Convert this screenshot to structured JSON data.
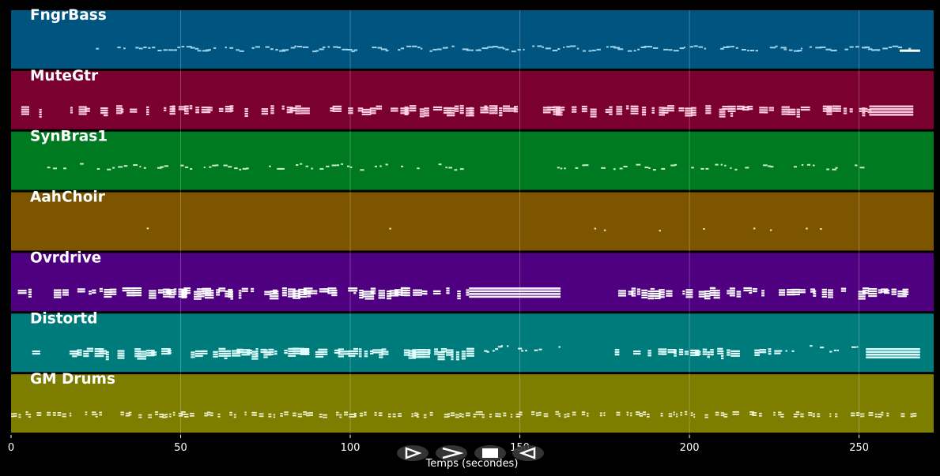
{
  "chart_data": {
    "type": "piano-roll",
    "xlabel": "Temps (secondes)",
    "xlim": [
      0,
      272
    ],
    "xticks": [
      0,
      50,
      100,
      150,
      200,
      250
    ],
    "grid": true,
    "tracks": [
      {
        "name": "FngrBass",
        "color": "#005580",
        "note_color": "#9fd3e8",
        "regions": [
          {
            "start": 25,
            "end": 43,
            "density": 0.55,
            "style": "sparse"
          },
          {
            "start": 42,
            "end": 266,
            "density": 0.85,
            "style": "bass"
          }
        ],
        "end_bar": {
          "start": 262,
          "end": 268
        }
      },
      {
        "name": "MuteGtr",
        "color": "#7a0030",
        "note_color": "#ffd0e0",
        "regions": [
          {
            "start": 3,
            "end": 42,
            "density": 0.35,
            "style": "chord"
          },
          {
            "start": 42,
            "end": 150,
            "density": 0.55,
            "style": "chord"
          },
          {
            "start": 154,
            "end": 253,
            "density": 0.6,
            "style": "chord"
          },
          {
            "start": 253,
            "end": 266,
            "density": 1.0,
            "style": "block"
          }
        ]
      },
      {
        "name": "SynBras1",
        "color": "#007a20",
        "note_color": "#c8f0c8",
        "regions": [
          {
            "start": 9,
            "end": 72,
            "density": 0.6,
            "style": "melody"
          },
          {
            "start": 76,
            "end": 135,
            "density": 0.6,
            "style": "melody"
          },
          {
            "start": 161,
            "end": 252,
            "density": 0.55,
            "style": "melody"
          }
        ]
      },
      {
        "name": "AahChoir",
        "color": "#7d5500",
        "note_color": "#f4dfb8",
        "regions": [
          {
            "start": 40,
            "end": 53,
            "density": 0.3,
            "style": "drops"
          },
          {
            "start": 106,
            "end": 120,
            "density": 0.3,
            "style": "drops"
          },
          {
            "start": 163,
            "end": 176,
            "density": 0.3,
            "style": "drops"
          },
          {
            "start": 191,
            "end": 252,
            "density": 0.35,
            "style": "drops"
          }
        ]
      },
      {
        "name": "Ovrdrive",
        "color": "#4e0080",
        "note_color": "#ffffff",
        "regions": [
          {
            "start": 2,
            "end": 42,
            "density": 0.45,
            "style": "chord"
          },
          {
            "start": 42,
            "end": 135,
            "density": 0.75,
            "style": "chord"
          },
          {
            "start": 135,
            "end": 162,
            "density": 0.9,
            "style": "block"
          },
          {
            "start": 178,
            "end": 266,
            "density": 0.75,
            "style": "chord"
          }
        ]
      },
      {
        "name": "Distortd",
        "color": "#007b7b",
        "note_color": "#e0ffff",
        "regions": [
          {
            "start": 2,
            "end": 42,
            "density": 0.45,
            "style": "chord"
          },
          {
            "start": 42,
            "end": 138,
            "density": 0.7,
            "style": "chord"
          },
          {
            "start": 138,
            "end": 162,
            "density": 0.5,
            "style": "melody"
          },
          {
            "start": 178,
            "end": 225,
            "density": 0.7,
            "style": "chord"
          },
          {
            "start": 225,
            "end": 252,
            "density": 0.6,
            "style": "melody"
          },
          {
            "start": 252,
            "end": 268,
            "density": 0.9,
            "style": "block"
          }
        ]
      },
      {
        "name": "GM Drums",
        "color": "#7d7d00",
        "note_color": "#f0f0d0",
        "regions": [
          {
            "start": 0,
            "end": 268,
            "density": 0.65,
            "style": "drums"
          }
        ]
      }
    ]
  },
  "controls": [
    {
      "name": "play-button",
      "symbol": "⊳"
    },
    {
      "name": "fast-forward-button",
      "symbol": "≻"
    },
    {
      "name": "stop-button",
      "symbol": "■"
    },
    {
      "name": "rewind-button",
      "symbol": "⊲"
    }
  ]
}
